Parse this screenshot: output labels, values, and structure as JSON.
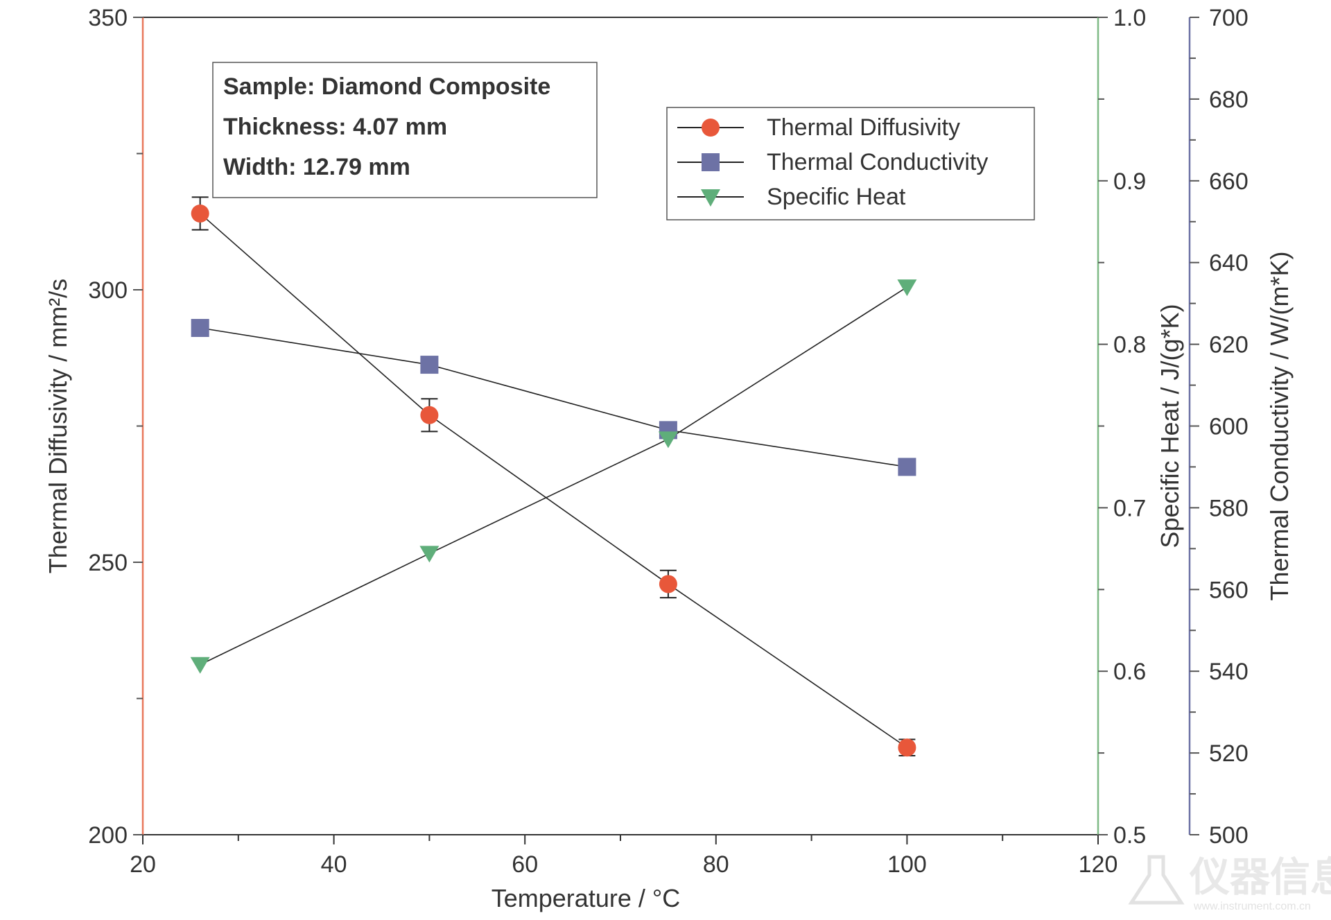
{
  "chart_data": {
    "type": "line",
    "xlabel": "Temperature / °C",
    "xlim": [
      20,
      120
    ],
    "x_ticks": [
      "20",
      "40",
      "60",
      "80",
      "100",
      "120"
    ],
    "y_axes": {
      "left": {
        "label": "Thermal Diffusivity / mm²/s",
        "range": [
          200,
          350
        ],
        "ticks": [
          "200",
          "250",
          "300",
          "350"
        ],
        "color": "#e8775a"
      },
      "right_inner": {
        "label": "Specific Heat / J/(g*K)",
        "range": [
          0.5,
          1.0
        ],
        "ticks": [
          "0.5",
          "0.6",
          "0.7",
          "0.8",
          "0.9",
          "1.0"
        ],
        "color": "#7fba86"
      },
      "right_outer": {
        "label": "Thermal Conductivity / W/(m*K)",
        "range": [
          500,
          700
        ],
        "ticks": [
          "500",
          "520",
          "540",
          "560",
          "580",
          "600",
          "620",
          "640",
          "660",
          "680",
          "700"
        ],
        "color": "#6d72a5"
      }
    },
    "series": [
      {
        "name": "Thermal Diffusivity",
        "axis": "left",
        "marker": "circle",
        "color": "#e8573a",
        "x": [
          26,
          50,
          75,
          100
        ],
        "y": [
          314,
          277,
          246,
          216
        ],
        "error": [
          3,
          3,
          2.5,
          1.5
        ]
      },
      {
        "name": "Thermal Conductivity",
        "axis": "right_outer",
        "marker": "square",
        "color": "#6d72a5",
        "x": [
          26,
          50,
          75,
          100
        ],
        "y": [
          624,
          615,
          599,
          590
        ]
      },
      {
        "name": "Specific Heat",
        "axis": "right_inner",
        "marker": "triangle-down",
        "color": "#5fae7a",
        "x": [
          26,
          50,
          75,
          100
        ],
        "y": [
          0.604,
          0.672,
          0.742,
          0.835
        ]
      }
    ],
    "annotation": {
      "lines": [
        "Sample: Diamond Composite",
        "Thickness: 4.07 mm",
        "Width: 12.79 mm"
      ]
    },
    "legend_position": "top-right",
    "grid": false
  },
  "watermark": {
    "text": "仪器信息网",
    "url": "www.instrument.com.cn"
  }
}
